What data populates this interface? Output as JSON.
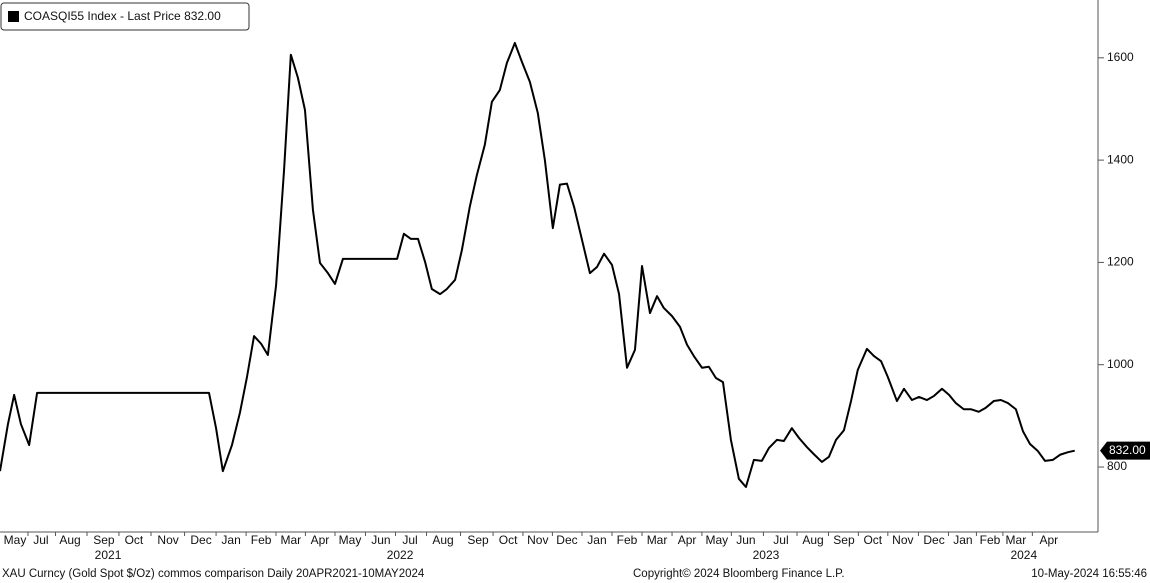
{
  "chart_data": {
    "type": "line",
    "legend_label": "COASQI55 Index - Last Price 832.00",
    "footer_left": "XAU Curncy (Gold Spot  $/Oz) commos comparison  Daily 20APR2021-10MAY2024",
    "footer_center": "Copyright© 2024 Bloomberg Finance L.P.",
    "footer_right": "10-May-2024 16:55:46",
    "last_price": {
      "value": 832,
      "label": "832.00"
    },
    "xlim": [
      0,
      37.3
    ],
    "ylim": [
      673,
      1713
    ],
    "yticks": [
      800,
      1000,
      1200,
      1400,
      1600
    ],
    "xticks": [
      {
        "value": 0.51,
        "label": "May"
      },
      {
        "value": 1.39,
        "label": "Jul"
      },
      {
        "value": 2.38,
        "label": "Aug"
      },
      {
        "value": 3.53,
        "label": "Sep"
      },
      {
        "value": 4.55,
        "label": "Oct"
      },
      {
        "value": 5.71,
        "label": "Nov"
      },
      {
        "value": 6.83,
        "label": "Dec"
      },
      {
        "value": 7.85,
        "label": "Jan"
      },
      {
        "value": 8.87,
        "label": "Feb"
      },
      {
        "value": 9.88,
        "label": "Mar"
      },
      {
        "value": 10.87,
        "label": "Apr"
      },
      {
        "value": 11.89,
        "label": "May"
      },
      {
        "value": 12.94,
        "label": "Jun"
      },
      {
        "value": 13.93,
        "label": "Jul"
      },
      {
        "value": 15.05,
        "label": "Aug"
      },
      {
        "value": 16.24,
        "label": "Sep"
      },
      {
        "value": 17.26,
        "label": "Oct"
      },
      {
        "value": 18.27,
        "label": "Nov"
      },
      {
        "value": 19.26,
        "label": "Dec"
      },
      {
        "value": 20.28,
        "label": "Jan"
      },
      {
        "value": 21.3,
        "label": "Feb"
      },
      {
        "value": 22.32,
        "label": "Mar"
      },
      {
        "value": 23.34,
        "label": "Apr"
      },
      {
        "value": 24.35,
        "label": "May"
      },
      {
        "value": 25.34,
        "label": "Jun"
      },
      {
        "value": 26.53,
        "label": "Jul"
      },
      {
        "value": 27.62,
        "label": "Aug"
      },
      {
        "value": 28.67,
        "label": "Sep"
      },
      {
        "value": 29.65,
        "label": "Oct"
      },
      {
        "value": 30.67,
        "label": "Nov"
      },
      {
        "value": 31.73,
        "label": "Dec"
      },
      {
        "value": 32.71,
        "label": "Jan"
      },
      {
        "value": 33.63,
        "label": "Feb"
      },
      {
        "value": 34.51,
        "label": "Mar"
      },
      {
        "value": 35.63,
        "label": "Apr"
      }
    ],
    "year_labels": [
      {
        "value": 3.67,
        "label": "2021"
      },
      {
        "value": 13.59,
        "label": "2022"
      },
      {
        "value": 26.02,
        "label": "2023"
      },
      {
        "value": 34.78,
        "label": "2024"
      }
    ],
    "x": [
      0,
      0.27,
      0.48,
      0.71,
      0.99,
      1.26,
      7.1,
      7.34,
      7.57,
      7.88,
      8.15,
      8.39,
      8.63,
      8.87,
      9.1,
      9.38,
      9.65,
      9.88,
      10.12,
      10.36,
      10.63,
      10.87,
      11.14,
      11.38,
      11.65,
      13.49,
      13.72,
      13.96,
      14.2,
      14.44,
      14.67,
      14.95,
      15.18,
      15.46,
      15.69,
      15.96,
      16.2,
      16.47,
      16.71,
      16.98,
      17.22,
      17.49,
      17.73,
      18.0,
      18.27,
      18.51,
      18.78,
      19.02,
      19.26,
      19.5,
      19.73,
      20.04,
      20.28,
      20.52,
      20.79,
      21.03,
      21.3,
      21.57,
      21.81,
      22.08,
      22.32,
      22.55,
      22.83,
      23.1,
      23.34,
      23.57,
      23.85,
      24.08,
      24.32,
      24.56,
      24.83,
      25.1,
      25.34,
      25.61,
      25.88,
      26.12,
      26.39,
      26.63,
      26.9,
      27.14,
      27.41,
      27.65,
      27.92,
      28.16,
      28.4,
      28.67,
      28.91,
      29.14,
      29.45,
      29.69,
      29.93,
      30.16,
      30.47,
      30.71,
      30.98,
      31.22,
      31.49,
      31.73,
      32.0,
      32.24,
      32.47,
      32.74,
      32.98,
      33.25,
      33.49,
      33.76,
      34.0,
      34.24,
      34.51,
      34.75,
      34.99,
      35.26,
      35.5,
      35.77,
      36.01,
      36.28,
      36.51
    ],
    "series": [
      {
        "name": "COASQI55 Index",
        "color": "#000000",
        "values": [
          792,
          884,
          941,
          884,
          843,
          945,
          945,
          876,
          792,
          843,
          906,
          976,
          1056,
          1041,
          1019,
          1156,
          1381,
          1606,
          1561,
          1498,
          1303,
          1199,
          1179,
          1158,
          1207,
          1207,
          1256,
          1246,
          1246,
          1201,
          1148,
          1138,
          1148,
          1166,
          1224,
          1309,
          1371,
          1430,
          1514,
          1537,
          1590,
          1629,
          1592,
          1553,
          1492,
          1400,
          1267,
          1352,
          1354,
          1309,
          1254,
          1179,
          1191,
          1217,
          1195,
          1138,
          994,
          1029,
          1193,
          1101,
          1134,
          1111,
          1095,
          1074,
          1039,
          1017,
          994,
          996,
          974,
          966,
          853,
          777,
          761,
          814,
          812,
          837,
          853,
          851,
          876,
          857,
          839,
          825,
          810,
          820,
          853,
          872,
          929,
          990,
          1031,
          1017,
          1007,
          976,
          929,
          953,
          931,
          937,
          931,
          939,
          953,
          941,
          925,
          913,
          913,
          908,
          916,
          929,
          931,
          925,
          913,
          870,
          845,
          831,
          812,
          814,
          824,
          829,
          832
        ]
      }
    ]
  }
}
